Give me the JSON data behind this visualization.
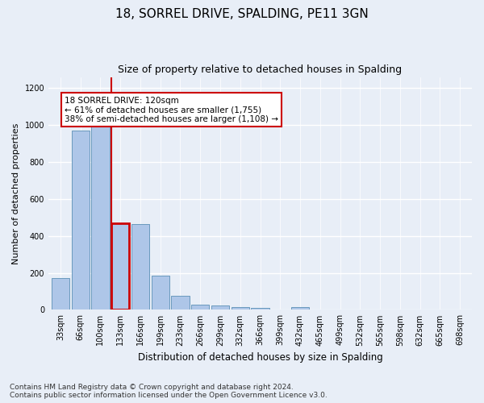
{
  "title1": "18, SORREL DRIVE, SPALDING, PE11 3GN",
  "title2": "Size of property relative to detached houses in Spalding",
  "xlabel": "Distribution of detached houses by size in Spalding",
  "ylabel": "Number of detached properties",
  "categories": [
    "33sqm",
    "66sqm",
    "100sqm",
    "133sqm",
    "166sqm",
    "199sqm",
    "233sqm",
    "266sqm",
    "299sqm",
    "332sqm",
    "366sqm",
    "399sqm",
    "432sqm",
    "465sqm",
    "499sqm",
    "532sqm",
    "565sqm",
    "598sqm",
    "632sqm",
    "665sqm",
    "698sqm"
  ],
  "values": [
    170,
    970,
    1000,
    470,
    465,
    185,
    75,
    28,
    22,
    15,
    10,
    0,
    15,
    0,
    0,
    0,
    0,
    0,
    0,
    0,
    0
  ],
  "bar_color": "#aec6e8",
  "bar_edge_color": "#5a8fb5",
  "highlight_bar_index": 3,
  "highlight_color": "#cc0000",
  "annotation_text": "18 SORREL DRIVE: 120sqm\n← 61% of detached houses are smaller (1,755)\n38% of semi-detached houses are larger (1,108) →",
  "annotation_box_color": "#ffffff",
  "annotation_box_edge": "#cc0000",
  "ylim": [
    0,
    1260
  ],
  "yticks": [
    0,
    200,
    400,
    600,
    800,
    1000,
    1200
  ],
  "footnote": "Contains HM Land Registry data © Crown copyright and database right 2024.\nContains public sector information licensed under the Open Government Licence v3.0.",
  "bg_color": "#e8eef7",
  "plot_bg_color": "#e8eef7",
  "grid_color": "#ffffff",
  "title1_fontsize": 11,
  "title2_fontsize": 9,
  "xlabel_fontsize": 8.5,
  "ylabel_fontsize": 8,
  "tick_fontsize": 7,
  "footnote_fontsize": 6.5,
  "annot_fontsize": 7.5
}
